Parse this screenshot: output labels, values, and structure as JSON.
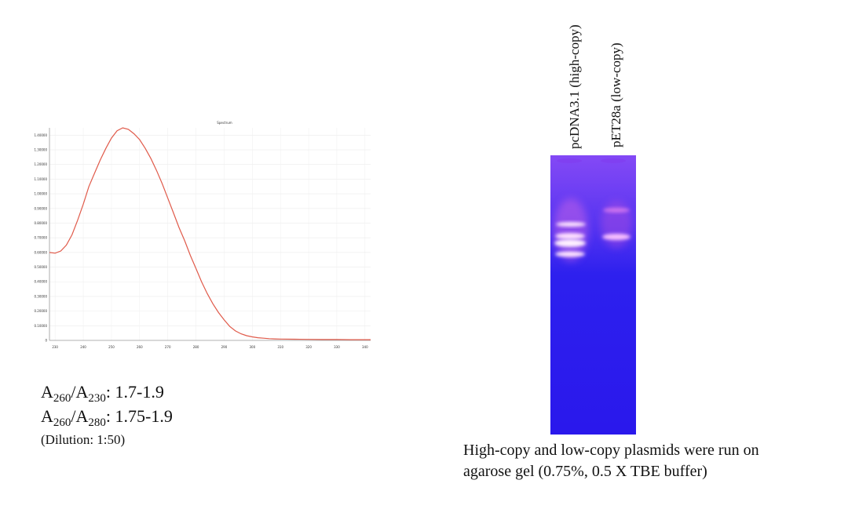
{
  "chart_data": {
    "type": "line",
    "title": "Spectrum",
    "xlabel": "",
    "ylabel": "",
    "x_ticks": [
      "230",
      "240",
      "250",
      "260",
      "270",
      "280",
      "290",
      "300",
      "310",
      "320",
      "330",
      "340"
    ],
    "y_ticks": [
      "0",
      "0.10000",
      "0.20000",
      "0.30000",
      "0.40000",
      "0.50000",
      "0.60000",
      "0.70000",
      "0.80000",
      "0.90000",
      "1.00000",
      "1.10000",
      "1.20000",
      "1.30000",
      "1.40000"
    ],
    "xlim": [
      228,
      342
    ],
    "ylim": [
      0,
      1.45
    ],
    "series": [
      {
        "color": "#e05a4a",
        "x": [
          228,
          230,
          232,
          234,
          236,
          238,
          240,
          242,
          244,
          246,
          248,
          250,
          252,
          254,
          256,
          258,
          260,
          262,
          264,
          266,
          268,
          270,
          272,
          274,
          276,
          278,
          280,
          282,
          284,
          286,
          288,
          290,
          292,
          294,
          296,
          298,
          300,
          302,
          304,
          306,
          308,
          310,
          315,
          320,
          325,
          330,
          335,
          340,
          342
        ],
        "y": [
          0.6,
          0.595,
          0.61,
          0.65,
          0.72,
          0.82,
          0.93,
          1.05,
          1.14,
          1.23,
          1.31,
          1.38,
          1.43,
          1.45,
          1.44,
          1.41,
          1.37,
          1.31,
          1.24,
          1.16,
          1.07,
          0.97,
          0.87,
          0.77,
          0.68,
          0.58,
          0.49,
          0.4,
          0.32,
          0.25,
          0.19,
          0.14,
          0.095,
          0.065,
          0.045,
          0.032,
          0.024,
          0.018,
          0.015,
          0.012,
          0.01,
          0.009,
          0.008,
          0.007,
          0.006,
          0.006,
          0.005,
          0.005,
          0.005
        ]
      }
    ]
  },
  "ratios": {
    "r1": {
      "a1": "A",
      "s1": "260",
      "slash": "/A",
      "s2": "230",
      "value": ": 1.7-1.9"
    },
    "r2": {
      "a1": "A",
      "s1": "260",
      "slash": "/A",
      "s2": "280",
      "value": ": 1.75-1.9"
    },
    "dilution": "(Dilution: 1:50)"
  },
  "gel": {
    "lane1_label": "pcDNA3.1 (high-copy)",
    "lane2_label": "pET28a (low-copy)",
    "caption": "High-copy and low-copy plasmids were run on agarose gel (0.75%, 0.5 X TBE buffer)"
  }
}
